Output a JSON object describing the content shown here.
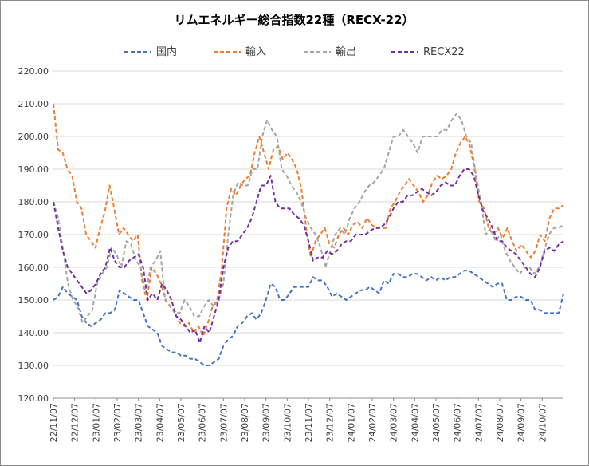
{
  "chart_data": {
    "type": "line",
    "title": "リムエネルギー総合指数22種（RECX-22）",
    "xlabel": "",
    "ylabel": "",
    "ylim": [
      120,
      220
    ],
    "yticks": [
      "120.00",
      "130.00",
      "140.00",
      "150.00",
      "160.00",
      "170.00",
      "180.00",
      "190.00",
      "200.00",
      "210.00",
      "220.00"
    ],
    "x_tick_labels": [
      "22/11/07",
      "22/12/07",
      "23/01/07",
      "23/02/07",
      "23/03/07",
      "23/04/07",
      "23/05/07",
      "23/06/07",
      "23/07/07",
      "23/08/07",
      "23/09/07",
      "23/10/07",
      "23/11/07",
      "23/12/07",
      "24/01/07",
      "24/02/07",
      "24/03/07",
      "24/04/07",
      "24/05/07",
      "24/06/07",
      "24/07/07",
      "24/08/07",
      "24/09/07",
      "24/10/07"
    ],
    "grid": true,
    "legend_position": "top",
    "series": [
      {
        "name": "国内",
        "color": "#4472c4",
        "dash": "dashed",
        "values": [
          150,
          151,
          154,
          152,
          151,
          150,
          145,
          143,
          142,
          143,
          144,
          146,
          146,
          147,
          153,
          152,
          151,
          150,
          150,
          146,
          142,
          141,
          140,
          136,
          135,
          134,
          134,
          133,
          133,
          132,
          132,
          131,
          130,
          130,
          131,
          132,
          136,
          138,
          139,
          142,
          143,
          145,
          146,
          144,
          146,
          150,
          155,
          154,
          150,
          150,
          152,
          154,
          154,
          154,
          154,
          157,
          156,
          156,
          154,
          151,
          152,
          151,
          150,
          151,
          152,
          153,
          153,
          154,
          153,
          152,
          156,
          155,
          158,
          158,
          157,
          157,
          158,
          158,
          157,
          156,
          157,
          156,
          157,
          156,
          157,
          157,
          158,
          159,
          159,
          158,
          157,
          156,
          155,
          154,
          155,
          155,
          150,
          150,
          151,
          151,
          150,
          150,
          147,
          147,
          146,
          146,
          146,
          146,
          152
        ]
      },
      {
        "name": "輸入",
        "color": "#ed7d31",
        "dash": "dashed",
        "values": [
          210,
          196,
          195,
          190,
          188,
          180,
          178,
          170,
          168,
          166,
          172,
          177,
          185,
          178,
          170,
          172,
          170,
          168,
          170,
          155,
          150,
          160,
          158,
          155,
          150,
          148,
          146,
          143,
          142,
          143,
          140,
          142,
          139,
          143,
          148,
          150,
          160,
          178,
          184,
          182,
          185,
          187,
          188,
          195,
          200,
          195,
          190,
          196,
          197,
          193,
          195,
          193,
          190,
          184,
          172,
          163,
          168,
          170,
          172,
          167,
          166,
          170,
          172,
          170,
          173,
          174,
          172,
          175,
          173,
          172,
          172,
          172,
          178,
          180,
          183,
          185,
          187,
          185,
          183,
          180,
          182,
          186,
          188,
          187,
          188,
          190,
          195,
          198,
          200,
          197,
          190,
          180,
          178,
          172,
          170,
          172,
          169,
          172,
          168,
          165,
          167,
          165,
          163,
          165,
          170,
          168,
          175,
          178,
          178,
          179
        ]
      },
      {
        "name": "輸出",
        "color": "#a5a5a5",
        "dash": "dashed",
        "values": [
          180,
          175,
          165,
          155,
          150,
          148,
          143,
          145,
          147,
          155,
          158,
          160,
          166,
          164,
          160,
          168,
          167,
          162,
          160,
          152,
          160,
          162,
          165,
          150,
          148,
          146,
          146,
          150,
          148,
          145,
          145,
          148,
          150,
          148,
          150,
          155,
          170,
          182,
          186,
          185,
          185,
          190,
          190,
          200,
          205,
          202,
          200,
          190,
          188,
          185,
          183,
          180,
          175,
          172,
          170,
          166,
          160,
          165,
          170,
          172,
          170,
          175,
          178,
          180,
          183,
          185,
          186,
          188,
          190,
          195,
          200,
          200,
          202,
          200,
          198,
          195,
          200,
          200,
          200,
          200,
          202,
          202,
          205,
          207,
          205,
          200,
          198,
          188,
          180,
          170,
          172,
          168,
          170,
          165,
          162,
          160,
          158,
          160,
          160,
          158,
          160,
          165,
          170,
          172,
          172,
          173
        ]
      },
      {
        "name": "RECX22",
        "color": "#7030a0",
        "dash": "dashed",
        "values": [
          180,
          172,
          165,
          160,
          158,
          156,
          154,
          152,
          153,
          155,
          158,
          160,
          166,
          162,
          160,
          160,
          162,
          163,
          164,
          160,
          150,
          152,
          150,
          155,
          153,
          150,
          145,
          144,
          142,
          140,
          141,
          137,
          142,
          140,
          145,
          150,
          160,
          166,
          168,
          168,
          170,
          172,
          175,
          180,
          185,
          185,
          188,
          180,
          178,
          178,
          178,
          176,
          175,
          173,
          168,
          162,
          163,
          163,
          165,
          164,
          165,
          167,
          168,
          168,
          170,
          170,
          170,
          171,
          172,
          172,
          173,
          175,
          178,
          180,
          180,
          182,
          182,
          183,
          184,
          183,
          182,
          183,
          185,
          186,
          185,
          185,
          188,
          190,
          190,
          188,
          182,
          177,
          175,
          172,
          168,
          168,
          166,
          165,
          164,
          162,
          160,
          158,
          157,
          160,
          165,
          166,
          165,
          167,
          168
        ]
      }
    ]
  }
}
